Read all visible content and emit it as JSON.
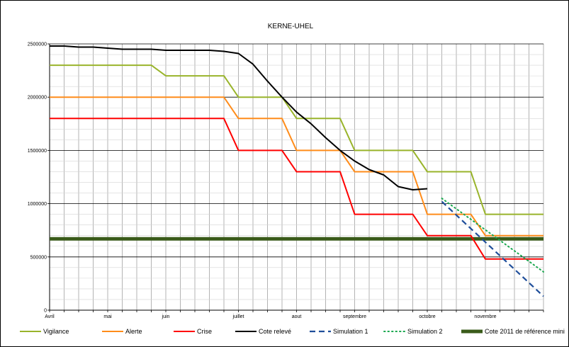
{
  "chart_data": {
    "type": "line",
    "title": "KERNE-UHEL",
    "xlabel": "",
    "ylabel": "",
    "ylim": [
      0,
      2500000
    ],
    "yticks": [
      0,
      500000,
      1000000,
      1500000,
      2000000,
      2500000
    ],
    "ytick_labels": [
      "0",
      "500000",
      "1000000",
      "1500000",
      "2000000",
      "2500000"
    ],
    "xlim": [
      0,
      34
    ],
    "x_unit": "week",
    "month_ticks": [
      {
        "label": "Avril",
        "x": 0
      },
      {
        "label": "mai",
        "x": 4
      },
      {
        "label": "juin",
        "x": 8
      },
      {
        "label": "juillet",
        "x": 13
      },
      {
        "label": "aout",
        "x": 17
      },
      {
        "label": "septembre",
        "x": 21
      },
      {
        "label": "octobre",
        "x": 26
      },
      {
        "label": "novembre",
        "x": 30
      }
    ],
    "grid": true,
    "legend_position": "bottom",
    "series": [
      {
        "name": "Vigilance",
        "color": "#99b42b",
        "style": "solid",
        "points": [
          [
            0,
            2300000
          ],
          [
            7,
            2300000
          ],
          [
            8,
            2200000
          ],
          [
            12,
            2200000
          ],
          [
            13,
            2000000
          ],
          [
            16,
            2000000
          ],
          [
            17,
            1800000
          ],
          [
            20,
            1800000
          ],
          [
            21,
            1500000
          ],
          [
            25,
            1500000
          ],
          [
            26,
            1300000
          ],
          [
            29,
            1300000
          ],
          [
            30,
            900000
          ],
          [
            34,
            900000
          ]
        ]
      },
      {
        "name": "Alerte",
        "color": "#ff8c1a",
        "style": "solid",
        "points": [
          [
            0,
            2000000
          ],
          [
            12,
            2000000
          ],
          [
            13,
            1800000
          ],
          [
            16,
            1800000
          ],
          [
            17,
            1500000
          ],
          [
            20,
            1500000
          ],
          [
            21,
            1300000
          ],
          [
            25,
            1300000
          ],
          [
            26,
            900000
          ],
          [
            29,
            900000
          ],
          [
            30,
            700000
          ],
          [
            34,
            700000
          ]
        ]
      },
      {
        "name": "Crise",
        "color": "#ff0000",
        "style": "solid",
        "points": [
          [
            0,
            1800000
          ],
          [
            12,
            1800000
          ],
          [
            13,
            1500000
          ],
          [
            16,
            1500000
          ],
          [
            17,
            1300000
          ],
          [
            20,
            1300000
          ],
          [
            21,
            900000
          ],
          [
            25,
            900000
          ],
          [
            26,
            700000
          ],
          [
            29,
            700000
          ],
          [
            30,
            480000
          ],
          [
            34,
            480000
          ]
        ]
      },
      {
        "name": "Cote relevé",
        "color": "#000000",
        "style": "solid",
        "points": [
          [
            0,
            2480000
          ],
          [
            1,
            2480000
          ],
          [
            2,
            2470000
          ],
          [
            3,
            2470000
          ],
          [
            4,
            2460000
          ],
          [
            5,
            2450000
          ],
          [
            6,
            2450000
          ],
          [
            7,
            2450000
          ],
          [
            8,
            2440000
          ],
          [
            9,
            2440000
          ],
          [
            10,
            2440000
          ],
          [
            11,
            2440000
          ],
          [
            12,
            2430000
          ],
          [
            13,
            2410000
          ],
          [
            14,
            2310000
          ],
          [
            15,
            2150000
          ],
          [
            16,
            2000000
          ],
          [
            17,
            1860000
          ],
          [
            18,
            1750000
          ],
          [
            19,
            1620000
          ],
          [
            20,
            1500000
          ],
          [
            21,
            1400000
          ],
          [
            22,
            1320000
          ],
          [
            23,
            1270000
          ],
          [
            24,
            1160000
          ],
          [
            25,
            1130000
          ],
          [
            26,
            1140000
          ]
        ]
      },
      {
        "name": "Simulation 1",
        "color": "#1f4e9a",
        "style": "dashed",
        "points": [
          [
            27,
            1020000
          ],
          [
            34,
            130000
          ]
        ]
      },
      {
        "name": "Simulation 2",
        "color": "#1aa84f",
        "style": "dotted",
        "points": [
          [
            27,
            1050000
          ],
          [
            34,
            360000
          ]
        ]
      },
      {
        "name": "Cote 2011 de référence mini",
        "color": "#3a5b1a",
        "style": "thick",
        "points": [
          [
            0,
            670000
          ],
          [
            34,
            670000
          ]
        ]
      }
    ]
  }
}
